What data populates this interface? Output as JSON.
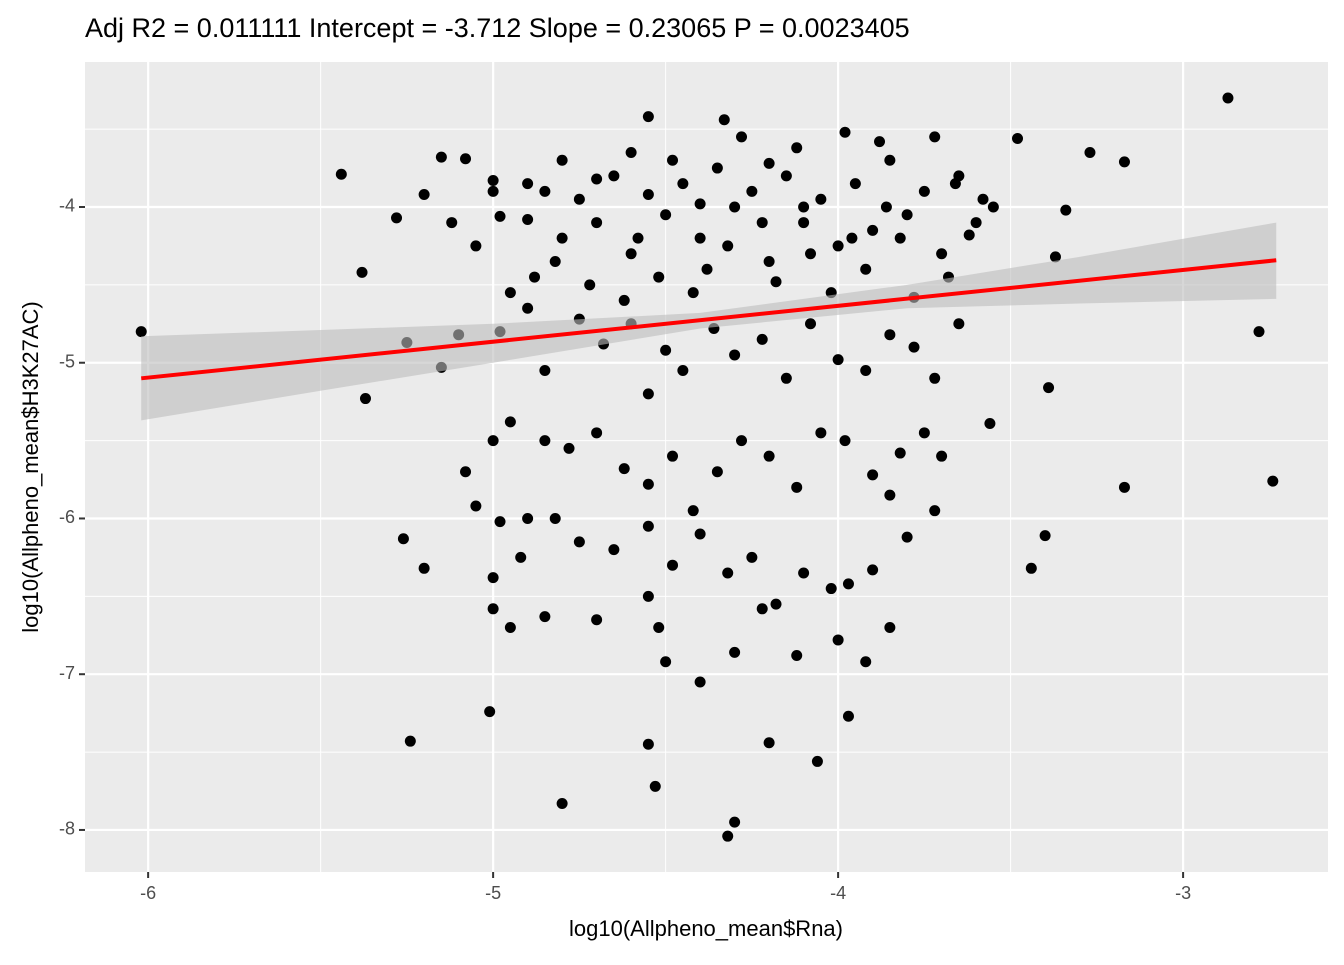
{
  "chart_data": {
    "type": "scatter",
    "title": "Adj R2 =  0.011111 Intercept = -3.712  Slope = 0.23065  P = 0.0023405",
    "x_label": "log10(Allpheno_mean$Rna)",
    "y_label": "log10(Allpheno_mean$H3K27AC)",
    "xlim": [
      -6.183,
      -2.58
    ],
    "ylim": [
      -8.27,
      -3.069
    ],
    "xticks": [
      -6,
      -5,
      -4,
      -3
    ],
    "yticks": [
      -8,
      -7,
      -6,
      -5,
      -4
    ],
    "minor_xticks": [
      -5.5,
      -4.5,
      -3.5
    ],
    "minor_yticks": [
      -7.5,
      -6.5,
      -5.5,
      -4.5,
      -3.5
    ],
    "grid": true,
    "color": "#000000",
    "line_color": "#ff0000",
    "band_color": "#bdbdbd",
    "x": [
      -6.02,
      -2.87,
      -2.78,
      -2.74,
      -3.17,
      -3.17,
      -3.27,
      -5.44,
      -5.38,
      -5.37,
      -5.24,
      -5.01,
      -4.8,
      -4.32,
      -4.3,
      -4.53,
      -4.55,
      -4.2,
      -4.06,
      -3.97,
      -4.4,
      -5.26,
      -5.2,
      -3.44,
      -3.4,
      -3.39,
      -3.56,
      -3.37,
      -3.34,
      -3.48,
      -4.98,
      -4.9,
      -4.85,
      -4.8,
      -4.75,
      -4.7,
      -4.65,
      -4.6,
      -4.55,
      -4.5,
      -4.45,
      -4.4,
      -4.35,
      -4.3,
      -4.25,
      -4.2,
      -4.15,
      -4.1,
      -4.05,
      -4.0,
      -3.95,
      -3.9,
      -3.85,
      -3.8,
      -3.75,
      -3.7,
      -3.65,
      -3.6,
      -3.58,
      -5.05,
      -5.12,
      -5.2,
      -5.28,
      -5.15,
      -5.08,
      -5.0,
      -4.95,
      -4.88,
      -4.82,
      -4.72,
      -4.62,
      -4.58,
      -4.52,
      -4.48,
      -4.42,
      -4.38,
      -4.32,
      -4.28,
      -4.22,
      -4.18,
      -4.12,
      -4.08,
      -4.02,
      -3.98,
      -3.92,
      -3.88,
      -3.82,
      -3.78,
      -3.72,
      -3.68,
      -3.62,
      -3.55,
      -4.55,
      -4.33,
      -4.2,
      -4.6,
      -4.8,
      -4.9,
      -5.0,
      -4.7,
      -4.4,
      -4.1,
      -3.96,
      -3.86,
      -3.66,
      -4.98,
      -4.9,
      -4.75,
      -4.68,
      -4.6,
      -4.5,
      -4.45,
      -4.36,
      -4.3,
      -4.22,
      -4.15,
      -4.08,
      -4.0,
      -3.92,
      -3.85,
      -3.78,
      -3.72,
      -3.65,
      -5.1,
      -5.15,
      -5.25,
      -4.85,
      -4.55,
      -5.0,
      -4.95,
      -4.85,
      -4.78,
      -4.7,
      -4.62,
      -4.55,
      -4.48,
      -4.42,
      -4.35,
      -4.28,
      -4.2,
      -4.12,
      -4.05,
      -3.98,
      -3.9,
      -3.82,
      -3.75,
      -3.7,
      -3.85,
      -5.08,
      -5.05,
      -4.98,
      -4.9,
      -4.82,
      -4.75,
      -4.65,
      -4.55,
      -4.48,
      -4.4,
      -4.32,
      -4.25,
      -4.18,
      -4.1,
      -4.02,
      -3.97,
      -3.9,
      -3.85,
      -3.92,
      -4.12,
      -4.3,
      -4.5,
      -4.52,
      -4.55,
      -4.0,
      -4.95,
      -4.85,
      -4.7,
      -5.0,
      -4.92,
      -5.0,
      -3.72,
      -3.8,
      -4.22
    ],
    "values": [
      -4.8,
      -3.3,
      -4.8,
      -5.76,
      -5.8,
      -3.71,
      -3.65,
      -3.79,
      -4.42,
      -5.23,
      -7.43,
      -7.24,
      -7.83,
      -8.04,
      -7.95,
      -7.72,
      -7.45,
      -7.44,
      -7.56,
      -7.27,
      -7.05,
      -6.13,
      -6.32,
      -6.32,
      -6.11,
      -5.16,
      -5.39,
      -4.32,
      -4.02,
      -3.56,
      -4.06,
      -4.08,
      -3.9,
      -4.2,
      -3.95,
      -4.1,
      -3.8,
      -4.3,
      -3.92,
      -4.05,
      -3.85,
      -4.2,
      -3.75,
      -4.0,
      -3.9,
      -4.35,
      -3.8,
      -4.1,
      -3.95,
      -4.25,
      -3.85,
      -4.15,
      -3.7,
      -4.05,
      -3.9,
      -4.3,
      -3.8,
      -4.1,
      -3.95,
      -4.25,
      -4.1,
      -3.92,
      -4.07,
      -3.68,
      -3.69,
      -3.83,
      -4.55,
      -4.45,
      -4.35,
      -4.5,
      -4.6,
      -4.2,
      -4.45,
      -3.7,
      -4.55,
      -4.4,
      -4.25,
      -3.55,
      -4.1,
      -4.48,
      -3.62,
      -4.3,
      -4.55,
      -3.52,
      -4.4,
      -3.58,
      -4.2,
      -4.58,
      -3.55,
      -4.45,
      -4.18,
      -4.0,
      -3.42,
      -3.44,
      -3.72,
      -3.65,
      -3.7,
      -3.85,
      -3.9,
      -3.82,
      -3.98,
      -4.0,
      -4.2,
      -4.0,
      -3.85,
      -4.8,
      -4.65,
      -4.72,
      -4.88,
      -4.75,
      -4.92,
      -5.05,
      -4.78,
      -4.95,
      -4.85,
      -5.1,
      -4.75,
      -4.98,
      -5.05,
      -4.82,
      -4.9,
      -5.1,
      -4.75,
      -4.82,
      -5.03,
      -4.87,
      -5.05,
      -5.2,
      -5.5,
      -5.38,
      -5.5,
      -5.55,
      -5.45,
      -5.68,
      -5.78,
      -5.6,
      -5.95,
      -5.7,
      -5.5,
      -5.6,
      -5.8,
      -5.45,
      -5.5,
      -5.72,
      -5.58,
      -5.45,
      -5.6,
      -5.85,
      -5.7,
      -5.92,
      -6.02,
      -6.0,
      -6.0,
      -6.15,
      -6.2,
      -6.05,
      -6.3,
      -6.1,
      -6.35,
      -6.25,
      -6.55,
      -6.35,
      -6.45,
      -6.42,
      -6.33,
      -6.7,
      -6.92,
      -6.88,
      -6.86,
      -6.92,
      -6.7,
      -6.5,
      -6.78,
      -6.7,
      -6.63,
      -6.65,
      -6.58,
      -6.25,
      -6.38,
      -5.95,
      -6.12,
      -6.58
    ],
    "fit_x": [
      -6.02,
      -2.73
    ],
    "fit_y": [
      -5.1,
      -4.342
    ],
    "band": {
      "x": [
        -6.02,
        -5.5,
        -5.0,
        -4.4,
        -3.8,
        -3.3,
        -2.73
      ],
      "lower": [
        -5.37,
        -5.18,
        -5.0,
        -4.78,
        -4.65,
        -4.62,
        -4.59
      ],
      "upper": [
        -4.83,
        -4.79,
        -4.75,
        -4.68,
        -4.5,
        -4.32,
        -4.1
      ]
    }
  }
}
